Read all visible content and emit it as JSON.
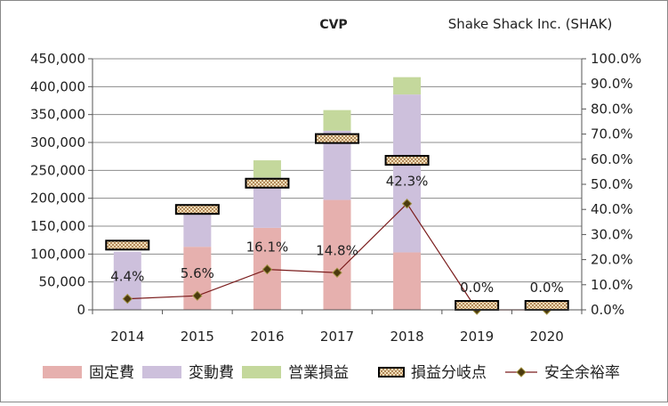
{
  "chart_data": {
    "type": "bar",
    "title": "CVP",
    "subtitle": "Shake Shack Inc. (SHAK)",
    "categories": [
      "2014",
      "2015",
      "2016",
      "2017",
      "2018",
      "2019",
      "2020"
    ],
    "stack_series": [
      {
        "name": "固定費",
        "color": "#e6b0ae",
        "values": [
          0,
          113000,
          147000,
          197000,
          103000,
          0,
          0
        ]
      },
      {
        "name": "変動費",
        "color": "#cdc0dc",
        "values": [
          104000,
          61000,
          90000,
          124000,
          283000,
          0,
          0
        ]
      },
      {
        "name": "営業損益",
        "color": "#c4d89c",
        "values": [
          0,
          0,
          31000,
          37000,
          31000,
          0,
          0
        ]
      }
    ],
    "breakeven": {
      "name": "損益分岐点",
      "values": [
        116000,
        180000,
        227000,
        307000,
        268000,
        0,
        0
      ]
    },
    "safety_margin": {
      "name": "安全余裕率",
      "values": [
        4.4,
        5.6,
        16.1,
        14.8,
        42.3,
        0.0,
        0.0
      ],
      "labels": [
        "4.4%",
        "5.6%",
        "16.1%",
        "14.8%",
        "42.3%",
        "0.0%",
        "0.0%"
      ],
      "color": "#7a1c1c"
    },
    "y_left": {
      "min": 0,
      "max": 450000,
      "step": 50000,
      "ticks": [
        "0",
        "50,000",
        "100,000",
        "150,000",
        "200,000",
        "250,000",
        "300,000",
        "350,000",
        "400,000",
        "450,000"
      ]
    },
    "y_right": {
      "min": 0,
      "max": 100,
      "step": 10,
      "ticks": [
        "0.0%",
        "10.0%",
        "20.0%",
        "30.0%",
        "40.0%",
        "50.0%",
        "60.0%",
        "70.0%",
        "80.0%",
        "90.0%",
        "100.0%"
      ]
    },
    "grid": true,
    "legend": "bottom",
    "legend_items": [
      "固定費",
      "変動費",
      "営業損益",
      "損益分岐点",
      "安全余裕率"
    ]
  }
}
